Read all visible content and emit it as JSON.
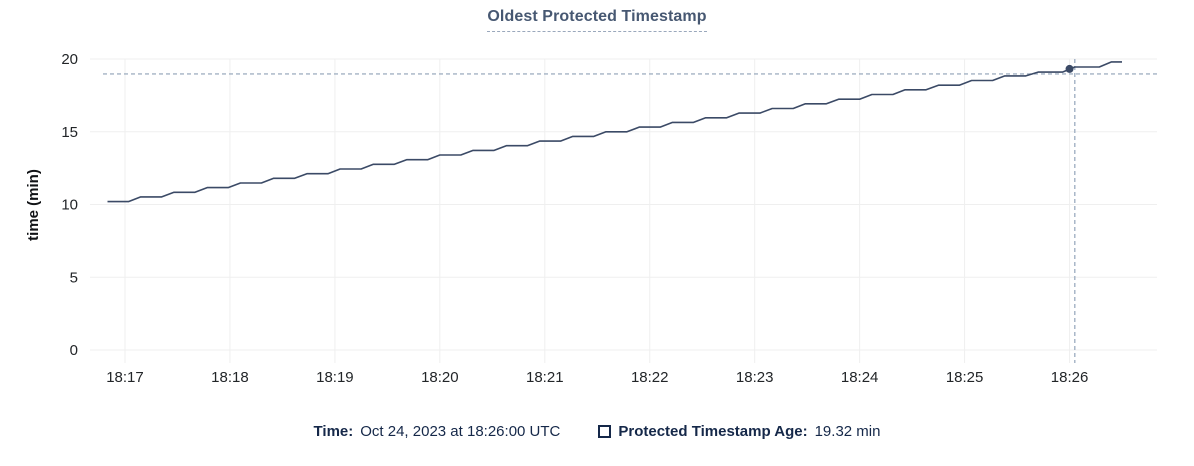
{
  "panel": {
    "title": "Oldest Protected Timestamp"
  },
  "chart_data": {
    "type": "line",
    "title": "Oldest Protected Timestamp",
    "xlabel": "",
    "ylabel": "time (min)",
    "ylim": [
      0,
      20
    ],
    "yticks": [
      0,
      5,
      10,
      15,
      20
    ],
    "grid": true,
    "legend_position": "bottom",
    "x_domain_seconds": [
      0,
      610
    ],
    "x_domain_note": "seconds elapsed after 18:16:40 UTC on Oct 24, 2023",
    "x_ticks": [
      {
        "t": 20,
        "label": "18:17"
      },
      {
        "t": 80,
        "label": "18:18"
      },
      {
        "t": 140,
        "label": "18:19"
      },
      {
        "t": 200,
        "label": "18:20"
      },
      {
        "t": 260,
        "label": "18:21"
      },
      {
        "t": 320,
        "label": "18:22"
      },
      {
        "t": 380,
        "label": "18:23"
      },
      {
        "t": 440,
        "label": "18:24"
      },
      {
        "t": 500,
        "label": "18:25"
      },
      {
        "t": 560,
        "label": "18:26"
      }
    ],
    "series": [
      {
        "name": "Protected Timestamp Age",
        "unit": "min",
        "color": "#3b4a66",
        "points": [
          [
            10,
            10.2
          ],
          [
            22,
            10.2
          ],
          [
            29,
            10.52
          ],
          [
            41,
            10.52
          ],
          [
            48,
            10.84
          ],
          [
            60,
            10.84
          ],
          [
            67,
            11.16
          ],
          [
            79,
            11.16
          ],
          [
            86,
            11.48
          ],
          [
            98,
            11.48
          ],
          [
            105,
            11.8
          ],
          [
            117,
            11.8
          ],
          [
            124,
            12.12
          ],
          [
            136,
            12.12
          ],
          [
            143,
            12.44
          ],
          [
            155,
            12.44
          ],
          [
            162,
            12.76
          ],
          [
            174,
            12.76
          ],
          [
            181,
            13.08
          ],
          [
            193,
            13.08
          ],
          [
            200,
            13.4
          ],
          [
            212,
            13.4
          ],
          [
            219,
            13.72
          ],
          [
            231,
            13.72
          ],
          [
            238,
            14.04
          ],
          [
            250,
            14.04
          ],
          [
            257,
            14.36
          ],
          [
            269,
            14.36
          ],
          [
            276,
            14.68
          ],
          [
            288,
            14.68
          ],
          [
            295,
            15.0
          ],
          [
            307,
            15.0
          ],
          [
            314,
            15.32
          ],
          [
            326,
            15.32
          ],
          [
            333,
            15.64
          ],
          [
            345,
            15.64
          ],
          [
            352,
            15.96
          ],
          [
            364,
            15.96
          ],
          [
            371,
            16.28
          ],
          [
            383,
            16.28
          ],
          [
            390,
            16.6
          ],
          [
            402,
            16.6
          ],
          [
            409,
            16.92
          ],
          [
            421,
            16.92
          ],
          [
            428,
            17.24
          ],
          [
            440,
            17.24
          ],
          [
            447,
            17.56
          ],
          [
            459,
            17.56
          ],
          [
            466,
            17.88
          ],
          [
            478,
            17.88
          ],
          [
            485,
            18.2
          ],
          [
            497,
            18.2
          ],
          [
            504,
            18.52
          ],
          [
            516,
            18.52
          ],
          [
            523,
            18.84
          ],
          [
            535,
            18.84
          ],
          [
            542,
            19.1
          ],
          [
            556,
            19.1
          ],
          [
            563,
            19.45
          ],
          [
            577,
            19.45
          ],
          [
            584,
            19.8
          ],
          [
            590,
            19.8
          ]
        ]
      }
    ]
  },
  "crosshair": {
    "mouse_x_seconds": 563,
    "mouse_y_value": 18.97,
    "snap_point": {
      "x_seconds": 560,
      "x_label": "18:26:00",
      "value_min": 19.32
    }
  },
  "footer": {
    "time_label": "Time:",
    "time_value": "Oct 24, 2023 at 18:26:00 UTC",
    "series_label": "Protected Timestamp Age:",
    "series_value": "19.32 min"
  },
  "colors": {
    "line": "#3b4a66",
    "dot": "#3b4a66",
    "crosshair": "#a3b2c4",
    "grid": "#efefef",
    "title_text": "#475872",
    "legend_text": "#152849",
    "tick_text": "#222528"
  }
}
